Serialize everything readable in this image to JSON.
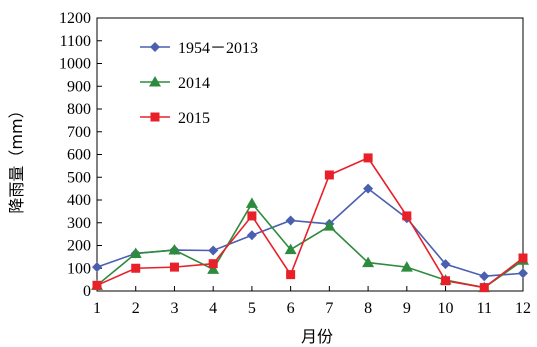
{
  "chart_data": {
    "type": "line",
    "title": "",
    "xlabel": "月份",
    "ylabel": "降雨量（mm）",
    "x": [
      1,
      2,
      3,
      4,
      5,
      6,
      7,
      8,
      9,
      10,
      11,
      12
    ],
    "xlim": [
      1,
      12
    ],
    "ylim": [
      0,
      1200
    ],
    "yticks": [
      0,
      100,
      200,
      300,
      400,
      500,
      600,
      700,
      800,
      900,
      1000,
      1100,
      1200
    ],
    "grid": false,
    "legend_position": "top-left",
    "series": [
      {
        "name": "1954－2013",
        "color": "#4a5fb0",
        "marker": "diamond",
        "values": [
          105,
          165,
          180,
          178,
          245,
          310,
          295,
          450,
          320,
          118,
          65,
          78
        ]
      },
      {
        "name": "2014",
        "color": "#2e8b3e",
        "marker": "triangle",
        "values": [
          25,
          165,
          180,
          95,
          385,
          182,
          285,
          125,
          105,
          48,
          15,
          135
        ]
      },
      {
        "name": "2015",
        "color": "#e8202a",
        "marker": "square",
        "values": [
          25,
          100,
          105,
          120,
          330,
          72,
          510,
          585,
          330,
          45,
          15,
          145
        ]
      }
    ]
  }
}
